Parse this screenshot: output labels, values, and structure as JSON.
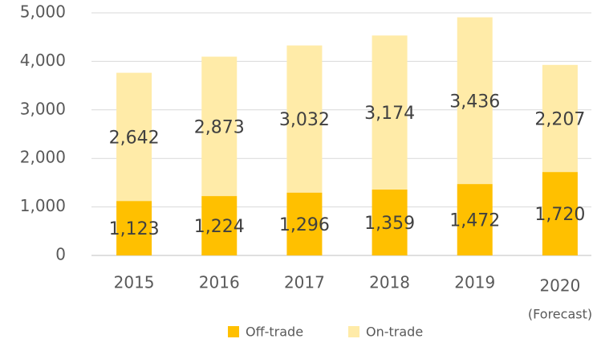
{
  "chart_data": {
    "type": "bar",
    "stacked": true,
    "categories": [
      "2015",
      "2016",
      "2017",
      "2018",
      "2019",
      "2020"
    ],
    "annotation": "(Forecast)",
    "series": [
      {
        "name": "Off-trade",
        "color": "#FFC000",
        "values": [
          1123,
          1224,
          1296,
          1359,
          1472,
          1720
        ],
        "value_labels": [
          "1,123",
          "1,224",
          "1,296",
          "1,359",
          "1,472",
          "1,720"
        ]
      },
      {
        "name": "On-trade",
        "color": "#FFEBA8",
        "values": [
          2642,
          2873,
          3032,
          3174,
          3436,
          2207
        ],
        "value_labels": [
          "2,642",
          "2,873",
          "3,032",
          "3,174",
          "3,436",
          "2,207"
        ]
      }
    ],
    "ylim": [
      0,
      5000
    ],
    "yticks": [
      0,
      {
        "value": 1000,
        "label": "1,000"
      },
      {
        "value": 2000,
        "label": "2,000"
      },
      {
        "value": 3000,
        "label": "3,000"
      },
      {
        "value": 4000,
        "label": "4,000"
      },
      {
        "value": 5000,
        "label": "5,000"
      }
    ],
    "grid": true,
    "legend": "bottom"
  }
}
